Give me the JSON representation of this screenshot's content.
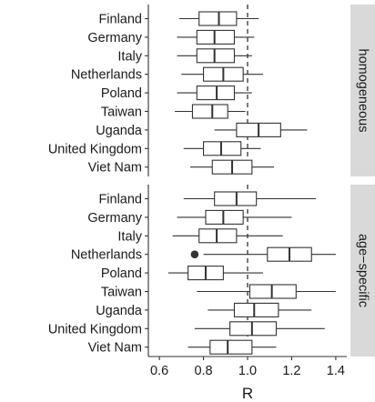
{
  "chart_data": {
    "type": "boxplot",
    "xlabel": "R",
    "ylabel": "",
    "xlim": [
      0.55,
      1.45
    ],
    "x_ticks": [
      0.6,
      0.8,
      1.0,
      1.2,
      1.4
    ],
    "x_tick_labels": [
      "0.6",
      "0.8",
      "1.0",
      "1.2",
      "1.4"
    ],
    "reference_line": {
      "x": 1.0,
      "style": "dashed"
    },
    "grid": false,
    "legend": "none",
    "categories": [
      "Finland",
      "Germany",
      "Italy",
      "Netherlands",
      "Poland",
      "Taiwan",
      "Uganda",
      "United Kingdom",
      "Viet Nam"
    ],
    "panels": [
      {
        "strip_label": "homogeneous",
        "boxes": [
          {
            "category": "Finland",
            "whisker_low": 0.69,
            "q1": 0.78,
            "median": 0.87,
            "q3": 0.95,
            "whisker_high": 1.05,
            "outliers": []
          },
          {
            "category": "Germany",
            "whisker_low": 0.68,
            "q1": 0.77,
            "median": 0.85,
            "q3": 0.94,
            "whisker_high": 1.03,
            "outliers": []
          },
          {
            "category": "Italy",
            "whisker_low": 0.68,
            "q1": 0.77,
            "median": 0.85,
            "q3": 0.94,
            "whisker_high": 1.02,
            "outliers": []
          },
          {
            "category": "Netherlands",
            "whisker_low": 0.7,
            "q1": 0.8,
            "median": 0.89,
            "q3": 0.98,
            "whisker_high": 1.07,
            "outliers": []
          },
          {
            "category": "Poland",
            "whisker_low": 0.68,
            "q1": 0.77,
            "median": 0.86,
            "q3": 0.94,
            "whisker_high": 1.02,
            "outliers": []
          },
          {
            "category": "Taiwan",
            "whisker_low": 0.67,
            "q1": 0.75,
            "median": 0.84,
            "q3": 0.91,
            "whisker_high": 0.99,
            "outliers": []
          },
          {
            "category": "Uganda",
            "whisker_low": 0.85,
            "q1": 0.95,
            "median": 1.05,
            "q3": 1.15,
            "whisker_high": 1.27,
            "outliers": []
          },
          {
            "category": "United Kingdom",
            "whisker_low": 0.71,
            "q1": 0.8,
            "median": 0.88,
            "q3": 0.97,
            "whisker_high": 1.06,
            "outliers": []
          },
          {
            "category": "Viet Nam",
            "whisker_low": 0.74,
            "q1": 0.84,
            "median": 0.93,
            "q3": 1.02,
            "whisker_high": 1.12,
            "outliers": []
          }
        ]
      },
      {
        "strip_label": "age−specific",
        "boxes": [
          {
            "category": "Finland",
            "whisker_low": 0.71,
            "q1": 0.85,
            "median": 0.95,
            "q3": 1.04,
            "whisker_high": 1.31,
            "outliers": []
          },
          {
            "category": "Germany",
            "whisker_low": 0.68,
            "q1": 0.81,
            "median": 0.89,
            "q3": 0.98,
            "whisker_high": 1.2,
            "outliers": []
          },
          {
            "category": "Italy",
            "whisker_low": 0.66,
            "q1": 0.78,
            "median": 0.86,
            "q3": 0.95,
            "whisker_high": 1.16,
            "outliers": []
          },
          {
            "category": "Netherlands",
            "whisker_low": 0.8,
            "q1": 1.09,
            "median": 1.19,
            "q3": 1.29,
            "whisker_high": 1.4,
            "outliers": [
              0.76
            ]
          },
          {
            "category": "Poland",
            "whisker_low": 0.64,
            "q1": 0.73,
            "median": 0.81,
            "q3": 0.89,
            "whisker_high": 1.07,
            "outliers": []
          },
          {
            "category": "Taiwan",
            "whisker_low": 0.77,
            "q1": 1.01,
            "median": 1.11,
            "q3": 1.22,
            "whisker_high": 1.4,
            "outliers": []
          },
          {
            "category": "Uganda",
            "whisker_low": 0.82,
            "q1": 0.94,
            "median": 1.03,
            "q3": 1.14,
            "whisker_high": 1.29,
            "outliers": []
          },
          {
            "category": "United Kingdom",
            "whisker_low": 0.76,
            "q1": 0.92,
            "median": 1.02,
            "q3": 1.13,
            "whisker_high": 1.35,
            "outliers": []
          },
          {
            "category": "Viet Nam",
            "whisker_low": 0.73,
            "q1": 0.83,
            "median": 0.91,
            "q3": 1.02,
            "whisker_high": 1.13,
            "outliers": []
          }
        ]
      }
    ],
    "colors": {
      "box_fill": "#ffffff",
      "box_stroke": "#333333",
      "strip_fill": "#d9d9d9",
      "axis": "#333333",
      "text": "#1a1a1a",
      "outlier": "#333333"
    }
  }
}
